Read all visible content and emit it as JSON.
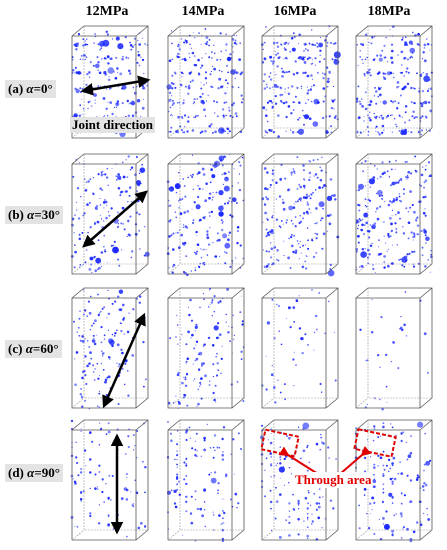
{
  "columns": [
    "12MPa",
    "14MPa",
    "16MPa",
    "18MPa"
  ],
  "rows": [
    {
      "prefix": "(a) ",
      "angle": "0°"
    },
    {
      "prefix": "(b) ",
      "angle": "30°"
    },
    {
      "prefix": "(c) ",
      "angle": "60°"
    },
    {
      "prefix": "(d) ",
      "angle": "90°"
    }
  ],
  "alpha_symbol": "α",
  "annotations": {
    "joint_direction": "Joint direction",
    "through_area": "Through area"
  },
  "colors": {
    "crack": "#1a28ff",
    "arrow": "#000000",
    "highlight": "#e00000",
    "label_bg": "#e3e3e3"
  },
  "density": [
    [
      0.9,
      0.95,
      1.0,
      1.0
    ],
    [
      0.75,
      0.85,
      0.9,
      1.0
    ],
    [
      0.6,
      0.55,
      0.2,
      0.12
    ],
    [
      0.5,
      0.55,
      0.6,
      0.65
    ]
  ]
}
